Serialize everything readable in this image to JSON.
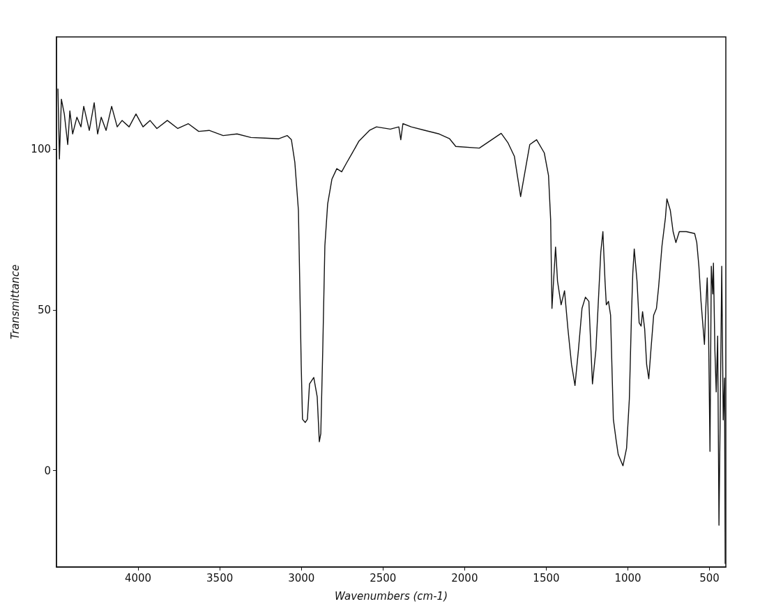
{
  "chart_data": {
    "type": "line",
    "xlabel": "Wavenumbers (cm-1)",
    "ylabel": "Transmittance",
    "xlim": [
      4500,
      400
    ],
    "ylim": [
      -30,
      135
    ],
    "xticks": [
      4000,
      3500,
      3000,
      2500,
      2000,
      1500,
      1000,
      500
    ],
    "yticks": [
      0,
      50,
      100
    ],
    "grid": false,
    "marker": "none",
    "line_style": "solid",
    "x": [
      4491,
      4482,
      4470,
      4452,
      4431,
      4418,
      4401,
      4375,
      4350,
      4333,
      4299,
      4269,
      4248,
      4226,
      4196,
      4162,
      4128,
      4098,
      4055,
      4013,
      3970,
      3927,
      3885,
      3821,
      3757,
      3693,
      3629,
      3565,
      3479,
      3394,
      3309,
      3223,
      3138,
      3087,
      3061,
      3040,
      3018,
      3010,
      3001,
      2993,
      2976,
      2963,
      2950,
      2924,
      2903,
      2890,
      2881,
      2869,
      2856,
      2839,
      2813,
      2783,
      2753,
      2724,
      2690,
      2647,
      2583,
      2540,
      2455,
      2403,
      2391,
      2378,
      2327,
      2242,
      2156,
      2092,
      2054,
      1910,
      1776,
      1734,
      1695,
      1657,
      1627,
      1601,
      1559,
      1512,
      1486,
      1473,
      1465,
      1443,
      1431,
      1409,
      1388,
      1367,
      1345,
      1324,
      1303,
      1281,
      1260,
      1239,
      1226,
      1217,
      1196,
      1183,
      1166,
      1153,
      1140,
      1132,
      1119,
      1106,
      1098,
      1089,
      1072,
      1059,
      1030,
      1008,
      991,
      978,
      970,
      961,
      944,
      931,
      919,
      910,
      897,
      885,
      872,
      859,
      842,
      825,
      812,
      791,
      770,
      761,
      740,
      723,
      706,
      685,
      642,
      591,
      578,
      565,
      552,
      540,
      531,
      523,
      514,
      506,
      497,
      489,
      480,
      476,
      467,
      459,
      450,
      442,
      433,
      425,
      416,
      408,
      404
    ],
    "series": [
      {
        "color": "#111111",
        "values": [
          118.9,
          97,
          115.6,
          111,
          101.5,
          112,
          104.8,
          110,
          107,
          113.4,
          105.9,
          114.5,
          104.8,
          110,
          105.9,
          113.4,
          107,
          109,
          107,
          111,
          107,
          109,
          106.5,
          109,
          106.5,
          108,
          105.6,
          105.9,
          104.3,
          104.8,
          103.7,
          103.5,
          103.3,
          104.3,
          103,
          96,
          81,
          59,
          33,
          16,
          15,
          16,
          27,
          29,
          23,
          9,
          11.5,
          37.5,
          70,
          83,
          90.7,
          94,
          93,
          95.7,
          98.7,
          102.6,
          105.9,
          107,
          106.3,
          107,
          103,
          108,
          107,
          105.9,
          104.8,
          103.3,
          100.9,
          100.4,
          105,
          102,
          97.8,
          85.3,
          94,
          101.5,
          103,
          98.9,
          91.8,
          78,
          50.5,
          69.6,
          59,
          51.6,
          56,
          44,
          33,
          26.5,
          37.5,
          50.5,
          54,
          52.7,
          37.5,
          27,
          37.5,
          50.5,
          68,
          74.4,
          59,
          51.6,
          52.7,
          48.4,
          33,
          16,
          9.5,
          5,
          1.5,
          7,
          22.3,
          48.4,
          61.4,
          69,
          59,
          46,
          45,
          49.5,
          44,
          33,
          28.6,
          37.5,
          48.4,
          50.5,
          57,
          70,
          78.7,
          84.6,
          81,
          74.4,
          71,
          74.4,
          74.4,
          73.8,
          71,
          63.6,
          52.7,
          45,
          39.3,
          50.5,
          60,
          44,
          6,
          63.6,
          55,
          64.6,
          37.5,
          24.5,
          41.9,
          -17,
          24.5,
          63.6,
          15.8,
          28.8,
          -29
        ]
      }
    ]
  }
}
